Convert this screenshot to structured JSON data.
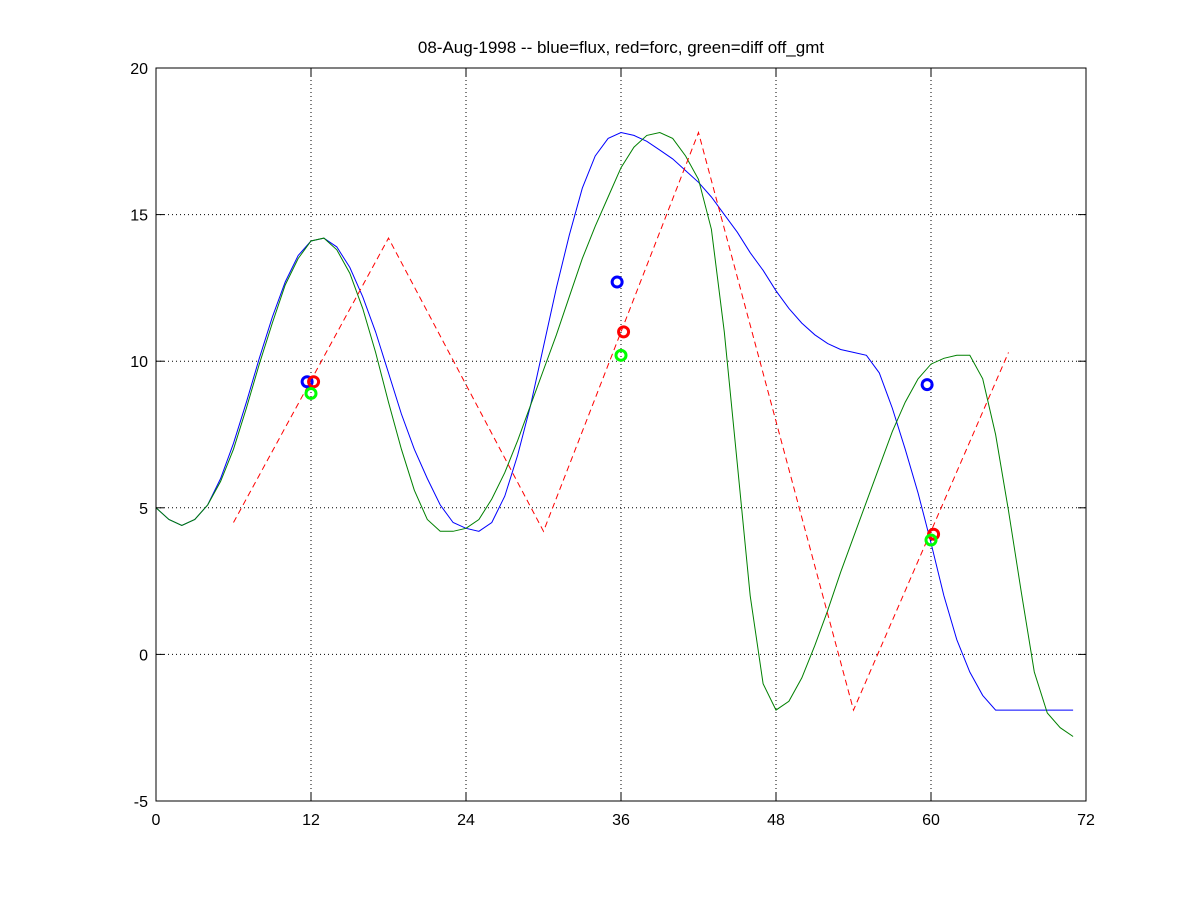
{
  "chart_data": {
    "type": "line",
    "title": "08-Aug-1998 -- blue=flux, red=forc, green=diff off_gmt",
    "xlabel": "",
    "ylabel": "",
    "xlim": [
      0,
      72
    ],
    "ylim": [
      -5,
      20
    ],
    "xticks": [
      0,
      12,
      24,
      36,
      48,
      60,
      72
    ],
    "yticks": [
      -5,
      0,
      5,
      10,
      15,
      20
    ],
    "grid": true,
    "colors": {
      "blue": "#0000ff",
      "red": "#ff0000",
      "dark_green": "#008000",
      "bright_green": "#00ff00"
    },
    "series": [
      {
        "color": "blue",
        "style": "solid",
        "x": [
          0,
          1,
          2,
          3,
          4,
          5,
          6,
          7,
          8,
          9,
          10,
          11,
          12,
          13,
          14,
          15,
          16,
          17,
          18,
          19,
          20,
          21,
          22,
          23,
          24,
          25,
          26,
          27,
          28,
          29,
          30,
          31,
          32,
          33,
          34,
          35,
          36,
          37,
          38,
          39,
          40,
          41,
          42,
          43,
          44,
          45,
          46,
          47,
          48,
          49,
          50,
          51,
          52,
          53,
          54,
          55,
          56,
          57,
          58,
          59,
          60,
          61,
          62,
          63,
          64,
          65,
          66,
          67,
          68,
          69,
          70,
          71
        ],
        "y": [
          5.0,
          4.6,
          4.4,
          4.6,
          5.1,
          6.0,
          7.2,
          8.6,
          10.1,
          11.5,
          12.7,
          13.6,
          14.1,
          14.2,
          13.9,
          13.2,
          12.2,
          11.0,
          9.6,
          8.2,
          7.0,
          6.0,
          5.1,
          4.5,
          4.3,
          4.2,
          4.5,
          5.4,
          6.8,
          8.5,
          10.5,
          12.5,
          14.3,
          15.9,
          17.0,
          17.6,
          17.8,
          17.7,
          17.5,
          17.2,
          16.9,
          16.5,
          16.1,
          15.6,
          15.0,
          14.4,
          13.7,
          13.1,
          12.4,
          11.8,
          11.3,
          10.9,
          10.6,
          10.4,
          10.3,
          10.2,
          9.6,
          8.4,
          7.0,
          5.5,
          3.8,
          2.0,
          0.5,
          -0.6,
          -1.4,
          -1.9,
          -1.9,
          -1.9,
          -1.9,
          -1.9,
          -1.9,
          -1.9
        ]
      },
      {
        "color": "dark_green",
        "style": "solid",
        "x": [
          0,
          1,
          2,
          3,
          4,
          5,
          6,
          7,
          8,
          9,
          10,
          11,
          12,
          13,
          14,
          15,
          16,
          17,
          18,
          19,
          20,
          21,
          22,
          23,
          24,
          25,
          26,
          27,
          28,
          29,
          30,
          31,
          32,
          33,
          34,
          35,
          36,
          37,
          38,
          39,
          40,
          41,
          42,
          43,
          44,
          45,
          46,
          47,
          48,
          49,
          50,
          51,
          52,
          53,
          54,
          55,
          56,
          57,
          58,
          59,
          60,
          61,
          62,
          63,
          64,
          65,
          66,
          67,
          68,
          69,
          70,
          71
        ],
        "y": [
          5.0,
          4.6,
          4.4,
          4.6,
          5.1,
          5.9,
          7.0,
          8.4,
          9.9,
          11.3,
          12.6,
          13.5,
          14.1,
          14.2,
          13.8,
          13.0,
          11.8,
          10.3,
          8.6,
          7.0,
          5.6,
          4.6,
          4.2,
          4.2,
          4.3,
          4.6,
          5.3,
          6.2,
          7.3,
          8.5,
          9.7,
          10.9,
          12.2,
          13.5,
          14.6,
          15.6,
          16.6,
          17.3,
          17.7,
          17.8,
          17.6,
          17.0,
          16.2,
          14.5,
          11.0,
          6.5,
          2.0,
          -1.0,
          -1.9,
          -1.6,
          -0.8,
          0.3,
          1.5,
          2.8,
          4.0,
          5.2,
          6.4,
          7.6,
          8.6,
          9.4,
          9.9,
          10.1,
          10.2,
          10.2,
          9.4,
          7.5,
          4.9,
          2.1,
          -0.6,
          -2.0,
          -2.5,
          -2.8
        ]
      },
      {
        "color": "red",
        "style": "dashed",
        "x": [
          6,
          18,
          30,
          42,
          54,
          66
        ],
        "y": [
          4.5,
          14.2,
          4.2,
          17.8,
          -1.9,
          10.3
        ]
      }
    ],
    "markers": [
      {
        "color": "blue",
        "x": 11.7,
        "y": 9.3
      },
      {
        "color": "red",
        "x": 12.2,
        "y": 9.3
      },
      {
        "color": "bright_green",
        "x": 12.0,
        "y": 8.9
      },
      {
        "color": "blue",
        "x": 35.7,
        "y": 12.7
      },
      {
        "color": "red",
        "x": 36.2,
        "y": 11.0
      },
      {
        "color": "bright_green",
        "x": 36.0,
        "y": 10.2
      },
      {
        "color": "blue",
        "x": 59.7,
        "y": 9.2
      },
      {
        "color": "red",
        "x": 60.2,
        "y": 4.1
      },
      {
        "color": "bright_green",
        "x": 60.0,
        "y": 3.9
      }
    ]
  }
}
